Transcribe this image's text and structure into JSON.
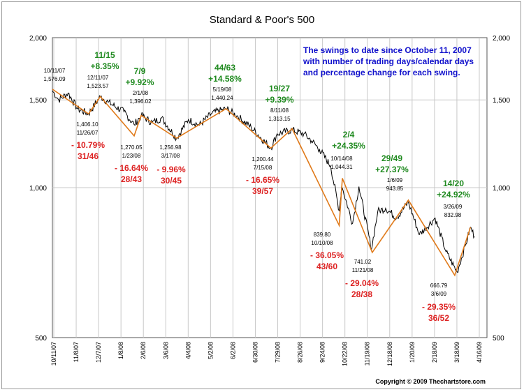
{
  "chart_data": {
    "type": "line",
    "title": "Standard & Poor's 500",
    "y_scale": "log",
    "ylim": [
      500,
      2000
    ],
    "y_ticks": [
      {
        "value": 2000,
        "label": "2,000"
      },
      {
        "value": 1500,
        "label": "1,500"
      },
      {
        "value": 1000,
        "label": "1,000"
      },
      {
        "value": 500,
        "label": "500"
      }
    ],
    "x_tick_labels": [
      "10/11/07",
      "11/8/07",
      "12/7/07",
      "1/8/08",
      "2/6/08",
      "3/6/08",
      "4/4/08",
      "5/2/08",
      "6/2/08",
      "6/30/08",
      "7/29/08",
      "8/26/08",
      "9/24/08",
      "10/22/08",
      "11/19/08",
      "12/18/08",
      "1/20/09",
      "2/18/09",
      "3/18/09",
      "4/16/09"
    ],
    "xlim": [
      "2007-10-11",
      "2009-04-16"
    ],
    "grid": true,
    "colors": {
      "price": "#000000",
      "swing": "#e07a1a",
      "gain": "#1f8a1f",
      "loss": "#dd2222",
      "info": "#1111cc"
    },
    "price_series": [
      [
        "2007-10-11",
        1565
      ],
      [
        "2007-10-19",
        1500
      ],
      [
        "2007-10-31",
        1549
      ],
      [
        "2007-11-12",
        1439
      ],
      [
        "2007-11-26",
        1407
      ],
      [
        "2007-12-11",
        1524
      ],
      [
        "2007-12-21",
        1484
      ],
      [
        "2008-01-10",
        1420
      ],
      [
        "2008-01-23",
        1338
      ],
      [
        "2008-02-01",
        1396
      ],
      [
        "2008-02-15",
        1350
      ],
      [
        "2008-02-27",
        1380
      ],
      [
        "2008-03-17",
        1257
      ],
      [
        "2008-04-01",
        1370
      ],
      [
        "2008-04-15",
        1335
      ],
      [
        "2008-05-01",
        1410
      ],
      [
        "2008-05-19",
        1440
      ],
      [
        "2008-06-03",
        1390
      ],
      [
        "2008-06-20",
        1320
      ],
      [
        "2008-07-15",
        1200
      ],
      [
        "2008-07-23",
        1282
      ],
      [
        "2008-08-11",
        1305
      ],
      [
        "2008-08-26",
        1282
      ],
      [
        "2008-09-05",
        1242
      ],
      [
        "2008-09-15",
        1192
      ],
      [
        "2008-09-29",
        1106
      ],
      [
        "2008-10-10",
        899
      ],
      [
        "2008-10-13",
        1003
      ],
      [
        "2008-10-14",
        998
      ],
      [
        "2008-10-27",
        848
      ],
      [
        "2008-11-04",
        1005
      ],
      [
        "2008-11-20",
        752
      ],
      [
        "2008-11-28",
        896
      ],
      [
        "2008-12-08",
        909
      ],
      [
        "2008-12-22",
        870
      ],
      [
        "2009-01-06",
        935
      ],
      [
        "2009-01-20",
        805
      ],
      [
        "2009-02-09",
        869
      ],
      [
        "2009-02-23",
        743
      ],
      [
        "2009-03-09",
        677
      ],
      [
        "2009-03-20",
        769
      ],
      [
        "2009-03-26",
        833
      ],
      [
        "2009-03-31",
        798
      ]
    ],
    "swing_points": [
      {
        "date": "2007-10-11",
        "value": 1576.09
      },
      {
        "date": "2007-11-26",
        "value": 1406.1
      },
      {
        "date": "2007-12-11",
        "value": 1523.57
      },
      {
        "date": "2008-01-23",
        "value": 1270.05
      },
      {
        "date": "2008-02-01",
        "value": 1396.02
      },
      {
        "date": "2008-03-17",
        "value": 1256.98
      },
      {
        "date": "2008-05-19",
        "value": 1440.24
      },
      {
        "date": "2008-07-15",
        "value": 1200.44
      },
      {
        "date": "2008-08-11",
        "value": 1313.15
      },
      {
        "date": "2008-10-10",
        "value": 839.8
      },
      {
        "date": "2008-10-14",
        "value": 1044.31
      },
      {
        "date": "2008-11-21",
        "value": 741.02
      },
      {
        "date": "2009-01-06",
        "value": 943.85
      },
      {
        "date": "2009-03-06",
        "value": 666.79
      },
      {
        "date": "2009-03-26",
        "value": 832.98
      }
    ],
    "annotations": [
      {
        "lines": [
          "10/11/07",
          "1,576.09"
        ],
        "kind": "note"
      },
      {
        "lines": [
          "11/15",
          "+8.35%"
        ],
        "kind": "gain"
      },
      {
        "lines": [
          "12/11/07",
          "1,523.57"
        ],
        "kind": "note"
      },
      {
        "lines": [
          "1,406.10",
          "11/26/07"
        ],
        "kind": "note"
      },
      {
        "lines": [
          "- 10.79%",
          "31/46"
        ],
        "kind": "loss"
      },
      {
        "lines": [
          "7/9",
          "+9.92%"
        ],
        "kind": "gain"
      },
      {
        "lines": [
          "2/1/08",
          "1,396.02"
        ],
        "kind": "note"
      },
      {
        "lines": [
          "1,270.05",
          "1/23/08"
        ],
        "kind": "note"
      },
      {
        "lines": [
          "- 16.64%",
          "28/43"
        ],
        "kind": "loss"
      },
      {
        "lines": [
          "1,256.98",
          "3/17/08"
        ],
        "kind": "note"
      },
      {
        "lines": [
          "- 9.96%",
          "30/45"
        ],
        "kind": "loss"
      },
      {
        "lines": [
          "44/63",
          "+14.58%"
        ],
        "kind": "gain"
      },
      {
        "lines": [
          "5/19/08",
          "1,440.24"
        ],
        "kind": "note"
      },
      {
        "lines": [
          "1,200.44",
          "7/15/08"
        ],
        "kind": "note"
      },
      {
        "lines": [
          "- 16.65%",
          "39/57"
        ],
        "kind": "loss"
      },
      {
        "lines": [
          "19/27",
          "+9.39%"
        ],
        "kind": "gain"
      },
      {
        "lines": [
          "8/11/08",
          "1,313.15"
        ],
        "kind": "note"
      },
      {
        "lines": [
          "2/4",
          "+24.35%"
        ],
        "kind": "gain"
      },
      {
        "lines": [
          "10/14/08",
          "1,044.31"
        ],
        "kind": "note"
      },
      {
        "lines": [
          "839.80",
          "10/10/08"
        ],
        "kind": "note"
      },
      {
        "lines": [
          "- 36.05%",
          "43/60"
        ],
        "kind": "loss"
      },
      {
        "lines": [
          "741.02",
          "11/21/08"
        ],
        "kind": "note"
      },
      {
        "lines": [
          "- 29.04%",
          "28/38"
        ],
        "kind": "loss"
      },
      {
        "lines": [
          "29/49",
          "+27.37%"
        ],
        "kind": "gain"
      },
      {
        "lines": [
          "1/6/09",
          "943.85"
        ],
        "kind": "note"
      },
      {
        "lines": [
          "14/20",
          "+24.92%"
        ],
        "kind": "gain"
      },
      {
        "lines": [
          "3/26/09",
          "832.98"
        ],
        "kind": "note"
      },
      {
        "lines": [
          "666.79",
          "3/6/09"
        ],
        "kind": "note"
      },
      {
        "lines": [
          "- 29.35%",
          "36/52"
        ],
        "kind": "loss"
      }
    ],
    "info_text": [
      "The swings to date since October 11, 2007",
      "with number of trading days/calendar days",
      "and percentage change for each swing."
    ],
    "copyright": "Copyright © 2009 Thechartstore.com"
  }
}
